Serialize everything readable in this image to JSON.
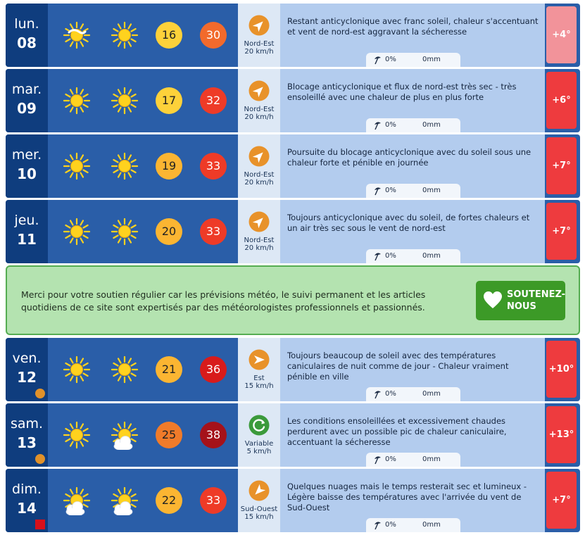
{
  "days": [
    {
      "day_name": "lun.",
      "day_num": "08",
      "icon1": "sun-partly-hidden-icon",
      "icon2": "sun-icon",
      "tmin": "16",
      "tmin_color": "#fdd13a",
      "tmax": "30",
      "tmax_color": "#f26a2c",
      "wind_dir": "Nord-Est",
      "wind_speed": "20 km/h",
      "wind_icon": "wind-arrow-northeast-icon",
      "wind_rot": 225,
      "desc": "Restant anticyclonique avec franc soleil, chaleur s'accentuant et vent de nord-est aggravant la sécheresse",
      "rain_pct": "0%",
      "rain_mm": "0mm",
      "ecart": "+4°",
      "ecart_color": "#f2939a",
      "marker": ""
    },
    {
      "day_name": "mar.",
      "day_num": "09",
      "icon1": "sun-icon",
      "icon2": "sun-icon",
      "tmin": "17",
      "tmin_color": "#fdd13a",
      "tmax": "32",
      "tmax_color": "#ee3b27",
      "wind_dir": "Nord-Est",
      "wind_speed": "20 km/h",
      "wind_icon": "wind-arrow-northeast-icon",
      "wind_rot": 225,
      "desc": "Blocage anticyclonique et flux de nord-est très sec - très ensoleillé avec une chaleur de plus en plus forte",
      "rain_pct": "0%",
      "rain_mm": "0mm",
      "ecart": "+6°",
      "ecart_color": "#ee3b3e",
      "marker": ""
    },
    {
      "day_name": "mer.",
      "day_num": "10",
      "icon1": "sun-icon",
      "icon2": "sun-icon",
      "tmin": "19",
      "tmin_color": "#fbb532",
      "tmax": "33",
      "tmax_color": "#ee3b27",
      "wind_dir": "Nord-Est",
      "wind_speed": "20 km/h",
      "wind_icon": "wind-arrow-northeast-icon",
      "wind_rot": 225,
      "desc": "Poursuite du blocage anticyclonique avec du soleil sous une chaleur forte et pénible en journée",
      "rain_pct": "0%",
      "rain_mm": "0mm",
      "ecart": "+7°",
      "ecart_color": "#ee3b3e",
      "marker": ""
    },
    {
      "day_name": "jeu.",
      "day_num": "11",
      "icon1": "sun-icon",
      "icon2": "sun-icon",
      "tmin": "20",
      "tmin_color": "#fbb532",
      "tmax": "33",
      "tmax_color": "#ee3b27",
      "wind_dir": "Nord-Est",
      "wind_speed": "20 km/h",
      "wind_icon": "wind-arrow-northeast-icon",
      "wind_rot": 225,
      "desc": "Toujours anticyclonique avec du soleil, de fortes chaleurs et un air très sec sous le vent de nord-est",
      "rain_pct": "0%",
      "rain_mm": "0mm",
      "ecart": "+7°",
      "ecart_color": "#ee3b3e",
      "marker": ""
    },
    {
      "day_name": "ven.",
      "day_num": "12",
      "icon1": "sun-icon",
      "icon2": "sun-icon",
      "tmin": "21",
      "tmin_color": "#fbb532",
      "tmax": "36",
      "tmax_color": "#d81b1b",
      "wind_dir": "Est",
      "wind_speed": "15 km/h",
      "wind_icon": "wind-arrow-east-icon",
      "wind_rot": 270,
      "desc": "Toujours beaucoup de soleil avec des températures caniculaires de nuit comme de jour - Chaleur vraiment pénible en ville",
      "rain_pct": "0%",
      "rain_mm": "0mm",
      "ecart": "+10°",
      "ecart_color": "#ee3b3e",
      "marker": "dot"
    },
    {
      "day_name": "sam.",
      "day_num": "13",
      "icon1": "sun-icon",
      "icon2": "sun-cloud-icon",
      "tmin": "25",
      "tmin_color": "#f07b2a",
      "tmax": "38",
      "tmax_color": "#a5121a",
      "wind_dir": "Variable",
      "wind_speed": "5 km/h",
      "wind_icon": "wind-variable-icon",
      "wind_rot": 0,
      "desc": "Les conditions ensoleillées et excessivement chaudes perdurent avec un possible pic de chaleur caniculaire, accentuant la sécheresse",
      "rain_pct": "0%",
      "rain_mm": "0mm",
      "ecart": "+13°",
      "ecart_color": "#ee3b3e",
      "marker": "dot"
    },
    {
      "day_name": "dim.",
      "day_num": "14",
      "icon1": "sun-cloud-icon",
      "icon2": "sun-cloud-icon",
      "tmin": "22",
      "tmin_color": "#fbb532",
      "tmax": "33",
      "tmax_color": "#ee3b27",
      "wind_dir": "Sud-Ouest",
      "wind_speed": "15 km/h",
      "wind_icon": "wind-arrow-southwest-icon",
      "wind_rot": 45,
      "desc": "Quelques nuages mais le temps resterait sec et lumineux - Légère baisse des températures avec l'arrivée du vent de Sud-Ouest",
      "rain_pct": "0%",
      "rain_mm": "0mm",
      "ecart": "+7°",
      "ecart_color": "#ee3b3e",
      "marker": "square"
    }
  ],
  "support": {
    "text": "Merci pour votre soutien régulier car les prévisions météo, le suivi permanent et les articles quotidiens de ce site sont expertisés par des météorologistes professionnels et passionnés.",
    "button_line1": "SOUTENEZ-",
    "button_line2": "NOUS",
    "button_icon": "heart-icon"
  },
  "colors": {
    "row_bg": "#2a5ea8",
    "date_bg": "#0f3d7e",
    "wind_bg": "#dde8f5",
    "desc_bg": "#b3ccee",
    "wind_icon_orange": "#e8922a",
    "wind_icon_green": "#3b9a3b",
    "support_bg": "#b4e3b0",
    "support_button": "#3c9a27"
  }
}
